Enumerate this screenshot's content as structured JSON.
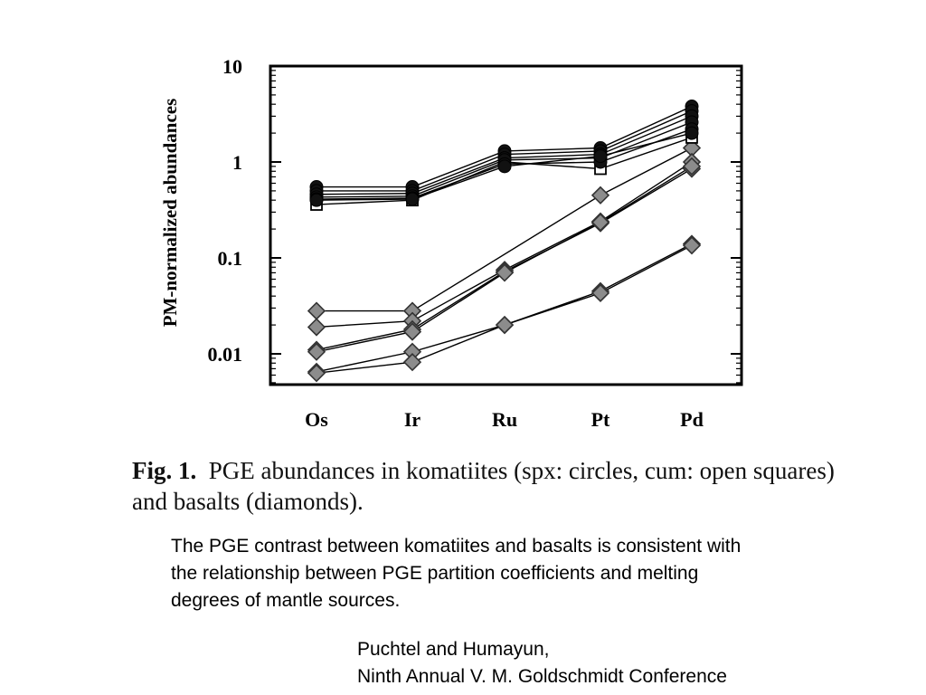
{
  "chart_data": {
    "type": "line",
    "ylabel": "PM-normalized abundances",
    "xlabel": "",
    "categories": [
      "Os",
      "Ir",
      "Ru",
      "Pt",
      "Pd"
    ],
    "yscale": "log",
    "ylim": [
      0.005,
      10
    ],
    "yticks": [
      0.01,
      0.1,
      1,
      10
    ],
    "ytick_labels": [
      "0.01",
      "0.1",
      "1",
      "10"
    ],
    "grid": false,
    "legend": "none",
    "series": [
      {
        "marker": "circle",
        "values": [
          0.55,
          0.55,
          1.3,
          1.4,
          3.8
        ]
      },
      {
        "marker": "circle",
        "values": [
          0.5,
          0.5,
          1.2,
          1.3,
          3.4
        ]
      },
      {
        "marker": "circle",
        "values": [
          0.46,
          0.47,
          1.1,
          1.2,
          3.0
        ]
      },
      {
        "marker": "circle",
        "values": [
          0.43,
          0.44,
          1.05,
          1.1,
          2.6
        ]
      },
      {
        "marker": "circle",
        "values": [
          0.41,
          0.42,
          0.95,
          1.0,
          2.2
        ]
      },
      {
        "marker": "circle",
        "values": [
          0.4,
          0.41,
          0.9,
          1.15,
          2.0
        ]
      },
      {
        "marker": "square",
        "values": [
          0.36,
          0.4,
          1.0,
          0.85,
          1.8
        ]
      },
      {
        "marker": "diamond",
        "values": [
          0.028,
          0.028,
          null,
          0.45,
          1.4
        ]
      },
      {
        "marker": "diamond",
        "values": [
          0.019,
          0.022,
          0.075,
          0.24,
          1.0
        ]
      },
      {
        "marker": "diamond",
        "values": [
          0.011,
          0.018,
          0.072,
          0.23,
          0.85
        ]
      },
      {
        "marker": "diamond",
        "values": [
          0.0105,
          0.017,
          0.07,
          0.235,
          0.9
        ]
      },
      {
        "marker": "diamond",
        "values": [
          0.0065,
          0.0105,
          0.02,
          0.045,
          0.14
        ]
      },
      {
        "marker": "diamond",
        "values": [
          0.0063,
          0.0082,
          0.02,
          0.043,
          0.135
        ]
      }
    ]
  },
  "caption": {
    "label": "Fig. 1.",
    "text": "PGE abundances in komatiites (spx: circles, cum: open squares) and basalts (diamonds)."
  },
  "body_text": "The PGE contrast between komatiites and basalts is consistent with the relationship between PGE partition coefficients and melting degrees of mantle sources.",
  "credit": {
    "line1": "Puchtel and Humayun,",
    "line2": "Ninth Annual V. M. Goldschmidt Conference"
  },
  "colors": {
    "circle_fill": "#111111",
    "diamond_fill": "#8c8c8c",
    "square_fill": "#ffffff",
    "line": "#000000"
  }
}
